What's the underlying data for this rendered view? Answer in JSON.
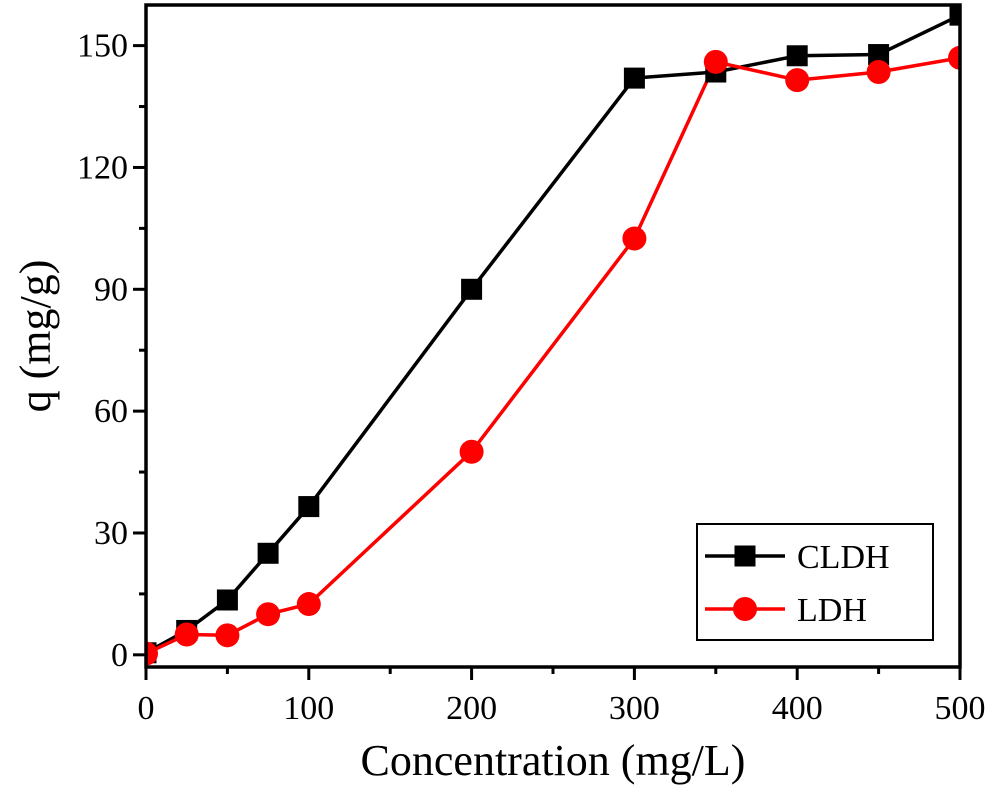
{
  "chart_data": {
    "type": "line",
    "title": "",
    "xlabel": "Concentration (mg/L)",
    "ylabel": "q (mg/g)",
    "xlim": [
      0,
      500
    ],
    "ylim": [
      -3,
      160
    ],
    "xticks": [
      0,
      100,
      200,
      300,
      400,
      500
    ],
    "xtick_labels": [
      "0",
      "100",
      "200",
      "300",
      "400",
      "500"
    ],
    "yticks": [
      0,
      30,
      60,
      90,
      120,
      150
    ],
    "ytick_labels": [
      "0",
      "30",
      "60",
      "90",
      "120",
      "150"
    ],
    "grid": false,
    "legend_position": "bottom-right",
    "series": [
      {
        "name": "CLDH",
        "color": "#000000",
        "marker": "square",
        "x": [
          0,
          25,
          50,
          75,
          100,
          200,
          300,
          350,
          400,
          450,
          500
        ],
        "y": [
          0.5,
          6,
          13.5,
          25,
          36.5,
          90,
          142,
          143.5,
          147.5,
          147.8,
          157.5
        ]
      },
      {
        "name": "LDH",
        "color": "#ff0000",
        "marker": "circle",
        "x": [
          0,
          25,
          50,
          75,
          100,
          200,
          300,
          350,
          400,
          450,
          500
        ],
        "y": [
          0.3,
          5,
          4.8,
          10,
          12.5,
          50,
          102.5,
          146,
          141.5,
          143.5,
          147
        ]
      }
    ]
  }
}
